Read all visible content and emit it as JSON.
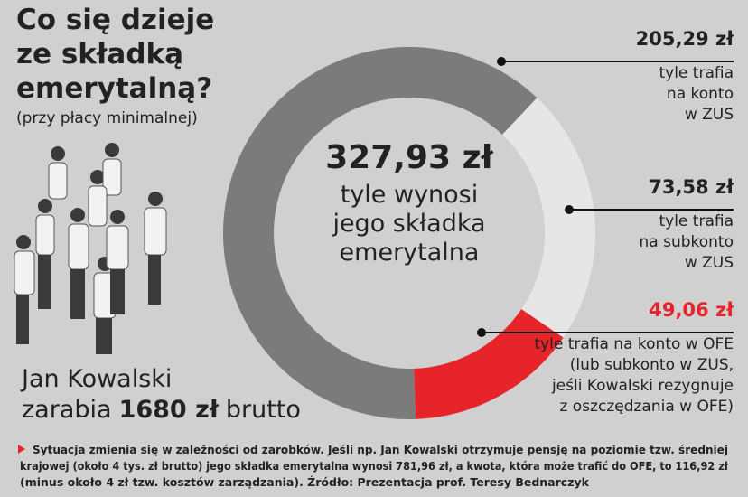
{
  "chart_data": {
    "type": "pie",
    "donut": true,
    "title_lines": [
      "Co się dzieje",
      "ze składką",
      "emerytalną?"
    ],
    "subtitle": "(przy płacy minimalnej)",
    "center_lines": [
      "327,93 zł",
      "tyle wynosi",
      "jego składka",
      "emerytalna"
    ],
    "values": [
      205.29,
      73.58,
      49.06
    ],
    "value_labels": [
      "205,29 zł",
      "73,58 zł",
      "49,06 zł"
    ],
    "colors": [
      "#7b7b7b",
      "#e6e6e6",
      "#e8242b"
    ],
    "label_colors": [
      "#222222",
      "#222222",
      "#e8242b"
    ],
    "descriptions": [
      [
        "tyle trafia",
        "na konto",
        "w ZUS"
      ],
      [
        "tyle trafia",
        "na subkonto",
        "w ZUS"
      ],
      [
        "tyle trafia na konto w OFE",
        "(lub subkonto w ZUS,",
        "jeśli Kowalski rezygnuje",
        "z oszczędzania w OFE)"
      ]
    ]
  },
  "person": {
    "name": "Jan Kowalski",
    "earns": "zarabia",
    "amount": "1680 zł",
    "gross": "brutto"
  },
  "footer": {
    "lines": [
      "Sytuacja zmienia się w zależności od zarobków. Jeśli np. Jan Kowalski otrzymuje pensję na poziomie tzw. średniej",
      "krajowej (około 4 tys. zł brutto) jego składka emerytalna wynosi 781,96 zł, a kwota, która może trafić do OFE, to 116,92 zł",
      "(minus około 4 zł tzw. kosztów zarządzania). Źródło: Prezentacja prof. Teresy Bednarczyk"
    ]
  }
}
